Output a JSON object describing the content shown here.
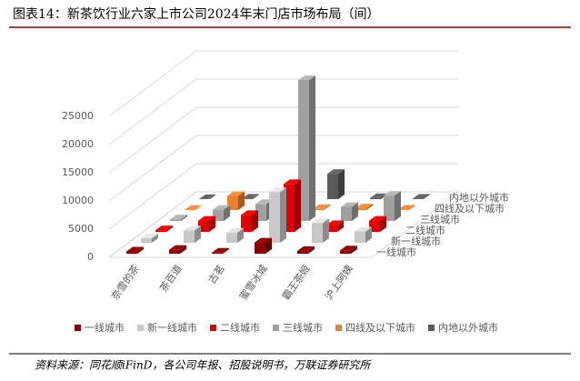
{
  "chart_data": {
    "type": "bar3d",
    "title": "图表14：新茶饮行业六家上市公司2024年末门店市场布局（间）",
    "source": "资料来源：同花顺iFinD，各公司年报、招股说明书，万联证券研究所",
    "categories": [
      "奈雪的茶",
      "茶百道",
      "古茗",
      "蜜雪冰城",
      "霸王茶姬",
      "沪上阿姨"
    ],
    "series": [
      {
        "name": "一线城市",
        "color": "#8b0000",
        "values": [
          400,
          700,
          200,
          2000,
          500,
          600
        ]
      },
      {
        "name": "新一线城市",
        "color": "#c8c8c8",
        "values": [
          800,
          2200,
          1800,
          9000,
          3500,
          2000
        ]
      },
      {
        "name": "二线城市",
        "color": "#e00000",
        "values": [
          300,
          2000,
          3000,
          8500,
          1200,
          2000
        ]
      },
      {
        "name": "三线城市",
        "color": "#a0a0a0",
        "values": [
          300,
          2000,
          3000,
          25000,
          2500,
          4500
        ]
      },
      {
        "name": "四线及以下城市",
        "color": "#ed7d31",
        "values": [
          50,
          2500,
          100,
          200,
          300,
          100
        ]
      },
      {
        "name": "内地以外城市",
        "color": "#595959",
        "values": [
          20,
          100,
          50,
          4500,
          200,
          100
        ]
      }
    ],
    "ylim": [
      0,
      30000
    ],
    "yticks": [
      0,
      5000,
      10000,
      15000,
      20000,
      25000
    ],
    "grid": true
  }
}
